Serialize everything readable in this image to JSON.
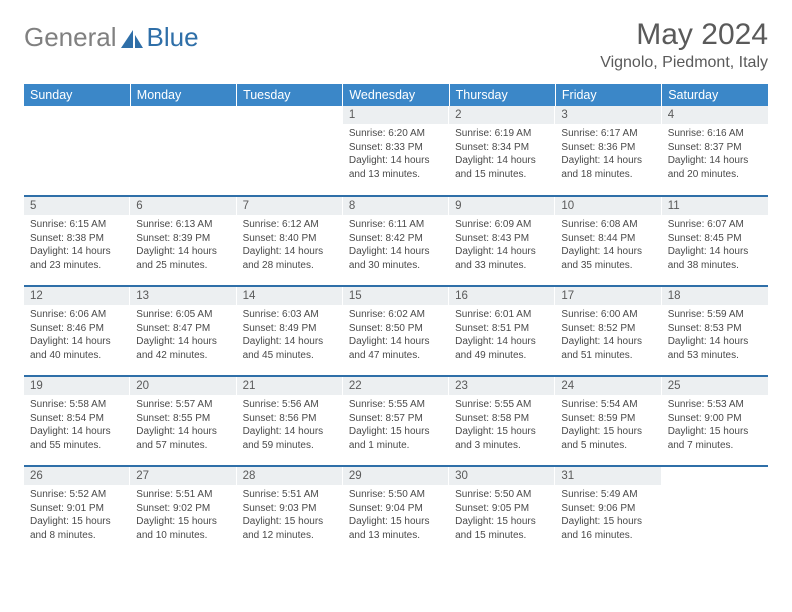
{
  "brand": {
    "text_gray": "General",
    "text_blue": "Blue"
  },
  "title": "May 2024",
  "location": "Vignolo, Piedmont, Italy",
  "colors": {
    "header_bg": "#3b87c8",
    "header_text": "#ffffff",
    "daynum_bg": "#eceff1",
    "border": "#2f6fa8",
    "logo_blue": "#2f6fa8",
    "logo_gray": "#808080",
    "body_text": "#4a4a4a"
  },
  "weekdays": [
    "Sunday",
    "Monday",
    "Tuesday",
    "Wednesday",
    "Thursday",
    "Friday",
    "Saturday"
  ],
  "weeks": [
    [
      {
        "n": "",
        "lines": []
      },
      {
        "n": "",
        "lines": []
      },
      {
        "n": "",
        "lines": []
      },
      {
        "n": "1",
        "lines": [
          "Sunrise: 6:20 AM",
          "Sunset: 8:33 PM",
          "Daylight: 14 hours",
          "and 13 minutes."
        ]
      },
      {
        "n": "2",
        "lines": [
          "Sunrise: 6:19 AM",
          "Sunset: 8:34 PM",
          "Daylight: 14 hours",
          "and 15 minutes."
        ]
      },
      {
        "n": "3",
        "lines": [
          "Sunrise: 6:17 AM",
          "Sunset: 8:36 PM",
          "Daylight: 14 hours",
          "and 18 minutes."
        ]
      },
      {
        "n": "4",
        "lines": [
          "Sunrise: 6:16 AM",
          "Sunset: 8:37 PM",
          "Daylight: 14 hours",
          "and 20 minutes."
        ]
      }
    ],
    [
      {
        "n": "5",
        "lines": [
          "Sunrise: 6:15 AM",
          "Sunset: 8:38 PM",
          "Daylight: 14 hours",
          "and 23 minutes."
        ]
      },
      {
        "n": "6",
        "lines": [
          "Sunrise: 6:13 AM",
          "Sunset: 8:39 PM",
          "Daylight: 14 hours",
          "and 25 minutes."
        ]
      },
      {
        "n": "7",
        "lines": [
          "Sunrise: 6:12 AM",
          "Sunset: 8:40 PM",
          "Daylight: 14 hours",
          "and 28 minutes."
        ]
      },
      {
        "n": "8",
        "lines": [
          "Sunrise: 6:11 AM",
          "Sunset: 8:42 PM",
          "Daylight: 14 hours",
          "and 30 minutes."
        ]
      },
      {
        "n": "9",
        "lines": [
          "Sunrise: 6:09 AM",
          "Sunset: 8:43 PM",
          "Daylight: 14 hours",
          "and 33 minutes."
        ]
      },
      {
        "n": "10",
        "lines": [
          "Sunrise: 6:08 AM",
          "Sunset: 8:44 PM",
          "Daylight: 14 hours",
          "and 35 minutes."
        ]
      },
      {
        "n": "11",
        "lines": [
          "Sunrise: 6:07 AM",
          "Sunset: 8:45 PM",
          "Daylight: 14 hours",
          "and 38 minutes."
        ]
      }
    ],
    [
      {
        "n": "12",
        "lines": [
          "Sunrise: 6:06 AM",
          "Sunset: 8:46 PM",
          "Daylight: 14 hours",
          "and 40 minutes."
        ]
      },
      {
        "n": "13",
        "lines": [
          "Sunrise: 6:05 AM",
          "Sunset: 8:47 PM",
          "Daylight: 14 hours",
          "and 42 minutes."
        ]
      },
      {
        "n": "14",
        "lines": [
          "Sunrise: 6:03 AM",
          "Sunset: 8:49 PM",
          "Daylight: 14 hours",
          "and 45 minutes."
        ]
      },
      {
        "n": "15",
        "lines": [
          "Sunrise: 6:02 AM",
          "Sunset: 8:50 PM",
          "Daylight: 14 hours",
          "and 47 minutes."
        ]
      },
      {
        "n": "16",
        "lines": [
          "Sunrise: 6:01 AM",
          "Sunset: 8:51 PM",
          "Daylight: 14 hours",
          "and 49 minutes."
        ]
      },
      {
        "n": "17",
        "lines": [
          "Sunrise: 6:00 AM",
          "Sunset: 8:52 PM",
          "Daylight: 14 hours",
          "and 51 minutes."
        ]
      },
      {
        "n": "18",
        "lines": [
          "Sunrise: 5:59 AM",
          "Sunset: 8:53 PM",
          "Daylight: 14 hours",
          "and 53 minutes."
        ]
      }
    ],
    [
      {
        "n": "19",
        "lines": [
          "Sunrise: 5:58 AM",
          "Sunset: 8:54 PM",
          "Daylight: 14 hours",
          "and 55 minutes."
        ]
      },
      {
        "n": "20",
        "lines": [
          "Sunrise: 5:57 AM",
          "Sunset: 8:55 PM",
          "Daylight: 14 hours",
          "and 57 minutes."
        ]
      },
      {
        "n": "21",
        "lines": [
          "Sunrise: 5:56 AM",
          "Sunset: 8:56 PM",
          "Daylight: 14 hours",
          "and 59 minutes."
        ]
      },
      {
        "n": "22",
        "lines": [
          "Sunrise: 5:55 AM",
          "Sunset: 8:57 PM",
          "Daylight: 15 hours",
          "and 1 minute."
        ]
      },
      {
        "n": "23",
        "lines": [
          "Sunrise: 5:55 AM",
          "Sunset: 8:58 PM",
          "Daylight: 15 hours",
          "and 3 minutes."
        ]
      },
      {
        "n": "24",
        "lines": [
          "Sunrise: 5:54 AM",
          "Sunset: 8:59 PM",
          "Daylight: 15 hours",
          "and 5 minutes."
        ]
      },
      {
        "n": "25",
        "lines": [
          "Sunrise: 5:53 AM",
          "Sunset: 9:00 PM",
          "Daylight: 15 hours",
          "and 7 minutes."
        ]
      }
    ],
    [
      {
        "n": "26",
        "lines": [
          "Sunrise: 5:52 AM",
          "Sunset: 9:01 PM",
          "Daylight: 15 hours",
          "and 8 minutes."
        ]
      },
      {
        "n": "27",
        "lines": [
          "Sunrise: 5:51 AM",
          "Sunset: 9:02 PM",
          "Daylight: 15 hours",
          "and 10 minutes."
        ]
      },
      {
        "n": "28",
        "lines": [
          "Sunrise: 5:51 AM",
          "Sunset: 9:03 PM",
          "Daylight: 15 hours",
          "and 12 minutes."
        ]
      },
      {
        "n": "29",
        "lines": [
          "Sunrise: 5:50 AM",
          "Sunset: 9:04 PM",
          "Daylight: 15 hours",
          "and 13 minutes."
        ]
      },
      {
        "n": "30",
        "lines": [
          "Sunrise: 5:50 AM",
          "Sunset: 9:05 PM",
          "Daylight: 15 hours",
          "and 15 minutes."
        ]
      },
      {
        "n": "31",
        "lines": [
          "Sunrise: 5:49 AM",
          "Sunset: 9:06 PM",
          "Daylight: 15 hours",
          "and 16 minutes."
        ]
      },
      {
        "n": "",
        "lines": []
      }
    ]
  ]
}
